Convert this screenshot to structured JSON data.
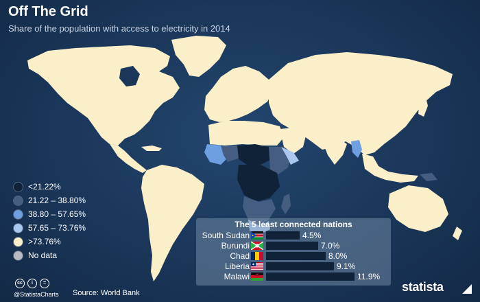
{
  "header": {
    "title": "Off The Grid",
    "subtitle": "Share of the population with access to electricity in 2014"
  },
  "colors": {
    "ocean": "#1a3659",
    "land_high": "#fbefc9",
    "class_1": "#0f2238",
    "class_2": "#455d80",
    "class_3": "#6e9fe0",
    "class_4": "#a9c7ef",
    "class_5": "#fbefc9",
    "no_data": "#b8bcc2"
  },
  "legend": [
    {
      "label": "<21.22%",
      "color": "#0f2238"
    },
    {
      "label": "21.22 – 38.80%",
      "color": "#455d80"
    },
    {
      "label": "38.80 – 57.65%",
      "color": "#6e9fe0"
    },
    {
      "label": "57.65 – 73.76%",
      "color": "#a9c7ef"
    },
    {
      "label": ">73.76%",
      "color": "#fbefc9"
    },
    {
      "label": "No data",
      "color": "#b8bcc2"
    }
  ],
  "least_connected": {
    "title": "The 5 least connected nations",
    "max_value": 12.5,
    "rows": [
      {
        "country": "South Sudan",
        "value": 4.5,
        "label": "4.5%",
        "flag": "south-sudan"
      },
      {
        "country": "Burundi",
        "value": 7.0,
        "label": "7.0%",
        "flag": "burundi"
      },
      {
        "country": "Chad",
        "value": 8.0,
        "label": "8.0%",
        "flag": "chad"
      },
      {
        "country": "Liberia",
        "value": 9.1,
        "label": "9.1%",
        "flag": "liberia"
      },
      {
        "country": "Malawi",
        "value": 11.9,
        "label": "11.9%",
        "flag": "malawi"
      }
    ]
  },
  "footer": {
    "handle": "@StatistaCharts",
    "source": "Source: World Bank",
    "brand": "statista",
    "icons": [
      "cc-icon",
      "attribution-icon",
      "no-derivatives-icon"
    ]
  }
}
